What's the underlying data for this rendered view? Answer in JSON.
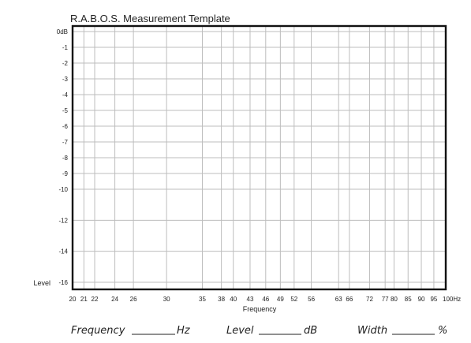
{
  "chart_data": {
    "type": "line",
    "title": "R.A.B.O.S. Measurement Template",
    "xlabel": "Frequency",
    "ylabel": "Level",
    "x_scale": "log",
    "y_scale": "non-uniform",
    "grid": true,
    "xlim": [
      20,
      100
    ],
    "ylim": [
      -16,
      0
    ],
    "x_ticks": [
      {
        "value": 20,
        "label": "20"
      },
      {
        "value": 21,
        "label": "21"
      },
      {
        "value": 22,
        "label": "22"
      },
      {
        "value": 24,
        "label": "24"
      },
      {
        "value": 26,
        "label": "26"
      },
      {
        "value": 30,
        "label": "30"
      },
      {
        "value": 35,
        "label": "35"
      },
      {
        "value": 38,
        "label": "38"
      },
      {
        "value": 40,
        "label": "40"
      },
      {
        "value": 43,
        "label": "43"
      },
      {
        "value": 46,
        "label": "46"
      },
      {
        "value": 49,
        "label": "49"
      },
      {
        "value": 52,
        "label": "52"
      },
      {
        "value": 56,
        "label": "56"
      },
      {
        "value": 63,
        "label": "63"
      },
      {
        "value": 66,
        "label": "66"
      },
      {
        "value": 72,
        "label": "72"
      },
      {
        "value": 77,
        "label": "77"
      },
      {
        "value": 80,
        "label": "80"
      },
      {
        "value": 85,
        "label": "85"
      },
      {
        "value": 90,
        "label": "90"
      },
      {
        "value": 95,
        "label": "95"
      },
      {
        "value": 100,
        "label": "100Hz"
      }
    ],
    "y_ticks": [
      {
        "value": 0,
        "label": "0dB"
      },
      {
        "value": -1,
        "label": "-1"
      },
      {
        "value": -2,
        "label": "-2"
      },
      {
        "value": -3,
        "label": "-3"
      },
      {
        "value": -4,
        "label": "-4"
      },
      {
        "value": -5,
        "label": "-5"
      },
      {
        "value": -6,
        "label": "-6"
      },
      {
        "value": -7,
        "label": "-7"
      },
      {
        "value": -8,
        "label": "-8"
      },
      {
        "value": -9,
        "label": "-9"
      },
      {
        "value": -10,
        "label": "-10"
      },
      {
        "value": -12,
        "label": "-12"
      },
      {
        "value": -14,
        "label": "-14"
      },
      {
        "value": -16,
        "label": "-16"
      }
    ],
    "series": []
  },
  "footer": {
    "frequency_label": "Frequency",
    "frequency_unit": "Hz",
    "level_label": "Level",
    "level_unit": "dB",
    "width_label": "Width",
    "width_unit": "%"
  },
  "colors": {
    "grid": "#bdbdbd",
    "frame": "#111111",
    "text": "#222222"
  }
}
